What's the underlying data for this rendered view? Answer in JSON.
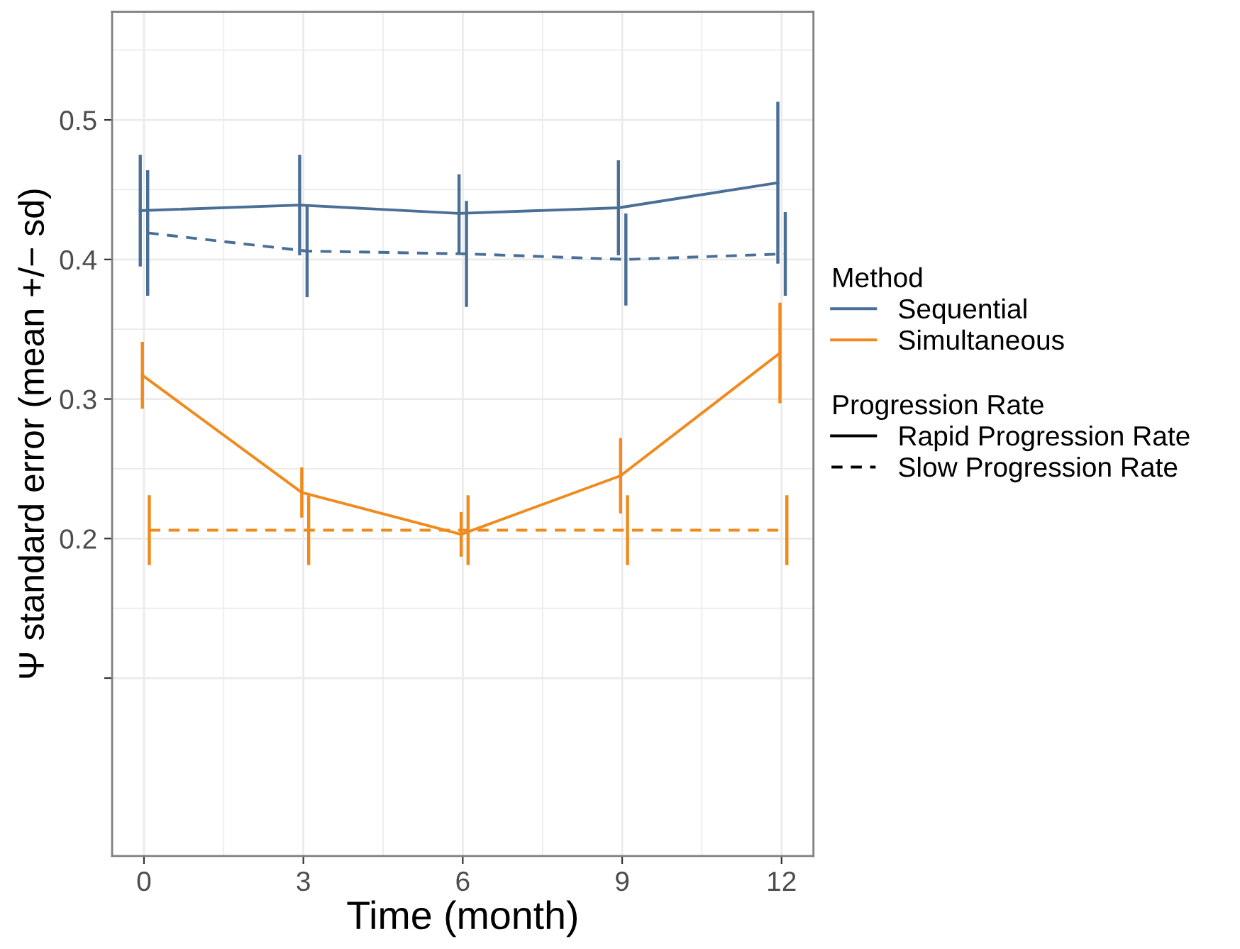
{
  "chart_data": {
    "type": "line",
    "xlabel": "Time (month)",
    "ylabel": "Ψ standard error (mean +/− sd)",
    "xlim": [
      -0.6,
      12.6
    ],
    "xticks": [
      0,
      3,
      6,
      9,
      12
    ],
    "ylim": [
      -0.0275,
      0.5775
    ],
    "yticks": [
      {
        "value": 0.1,
        "label": null
      },
      0.2,
      0.3,
      0.4,
      0.5
    ],
    "grid": true,
    "legend": "right",
    "marker": "none",
    "legend_title": [
      "Method",
      "Progression Rate"
    ],
    "annotations": [
      "Rapid Progression Rate",
      "Slow Progression Rate"
    ],
    "series": [
      {
        "name": "Sequential",
        "color": "#4a6f96",
        "line_style": "solid",
        "x": [
          -0.07,
          2.93,
          5.93,
          8.93,
          11.93
        ],
        "values": [
          0.435,
          0.439,
          0.433,
          0.437,
          0.455
        ],
        "errors": [
          0.04,
          0.036,
          0.028,
          0.034,
          0.058
        ]
      },
      {
        "color": "#4a6f96",
        "line_style": "dashed",
        "x": [
          0.07,
          3.07,
          6.07,
          9.07,
          12.07
        ],
        "values": [
          0.419,
          0.406,
          0.404,
          0.4,
          0.404
        ],
        "errors": [
          0.045,
          0.033,
          0.038,
          0.033,
          0.03
        ]
      },
      {
        "name": "Simultaneous",
        "color": "#f08a1c",
        "line_style": "solid",
        "x": [
          -0.03,
          2.97,
          5.97,
          8.97,
          11.97
        ],
        "values": [
          0.317,
          0.233,
          0.203,
          0.245,
          0.333
        ],
        "errors": [
          0.024,
          0.018,
          0.016,
          0.027,
          0.036
        ]
      },
      {
        "color": "#f08a1c",
        "line_style": "dashed",
        "x": [
          0.1,
          3.1,
          6.1,
          9.1,
          12.1
        ],
        "values": [
          0.206,
          0.206,
          0.206,
          0.206,
          0.206
        ],
        "errors": [
          0.025,
          0.025,
          0.025,
          0.025,
          0.025
        ]
      }
    ]
  }
}
